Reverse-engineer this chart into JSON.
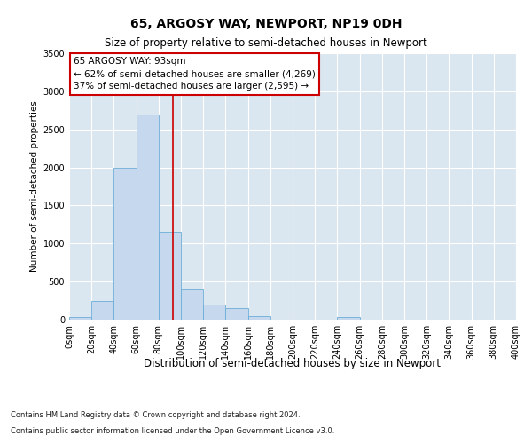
{
  "title": "65, ARGOSY WAY, NEWPORT, NP19 0DH",
  "subtitle": "Size of property relative to semi-detached houses in Newport",
  "xlabel": "Distribution of semi-detached houses by size in Newport",
  "ylabel": "Number of semi-detached properties",
  "footnote1": "Contains HM Land Registry data © Crown copyright and database right 2024.",
  "footnote2": "Contains public sector information licensed under the Open Government Licence v3.0.",
  "annotation_line1": "65 ARGOSY WAY: 93sqm",
  "annotation_line2": "← 62% of semi-detached houses are smaller (4,269)",
  "annotation_line3": "37% of semi-detached houses are larger (2,595) →",
  "property_size": 93,
  "bin_edges": [
    0,
    20,
    40,
    60,
    80,
    100,
    120,
    140,
    160,
    180,
    200,
    220,
    240,
    260,
    280,
    300,
    320,
    340,
    360,
    380,
    400
  ],
  "bar_heights": [
    40,
    250,
    2000,
    2700,
    1150,
    400,
    200,
    150,
    50,
    0,
    0,
    0,
    30,
    0,
    0,
    0,
    0,
    0,
    0,
    0
  ],
  "bar_color": "#c5d8ee",
  "bar_edge_color": "#6baed6",
  "vline_color": "#cc0000",
  "vline_x": 93,
  "annotation_box_color": "#cc0000",
  "fig_bg_color": "#ffffff",
  "plot_bg_color": "#dae6f0",
  "ylim": [
    0,
    3500
  ],
  "yticks": [
    0,
    500,
    1000,
    1500,
    2000,
    2500,
    3000,
    3500
  ],
  "grid_color": "#ffffff",
  "title_fontsize": 10,
  "subtitle_fontsize": 8.5,
  "xlabel_fontsize": 8.5,
  "ylabel_fontsize": 7.5,
  "tick_fontsize": 7,
  "annotation_fontsize": 7.5,
  "footnote_fontsize": 6
}
